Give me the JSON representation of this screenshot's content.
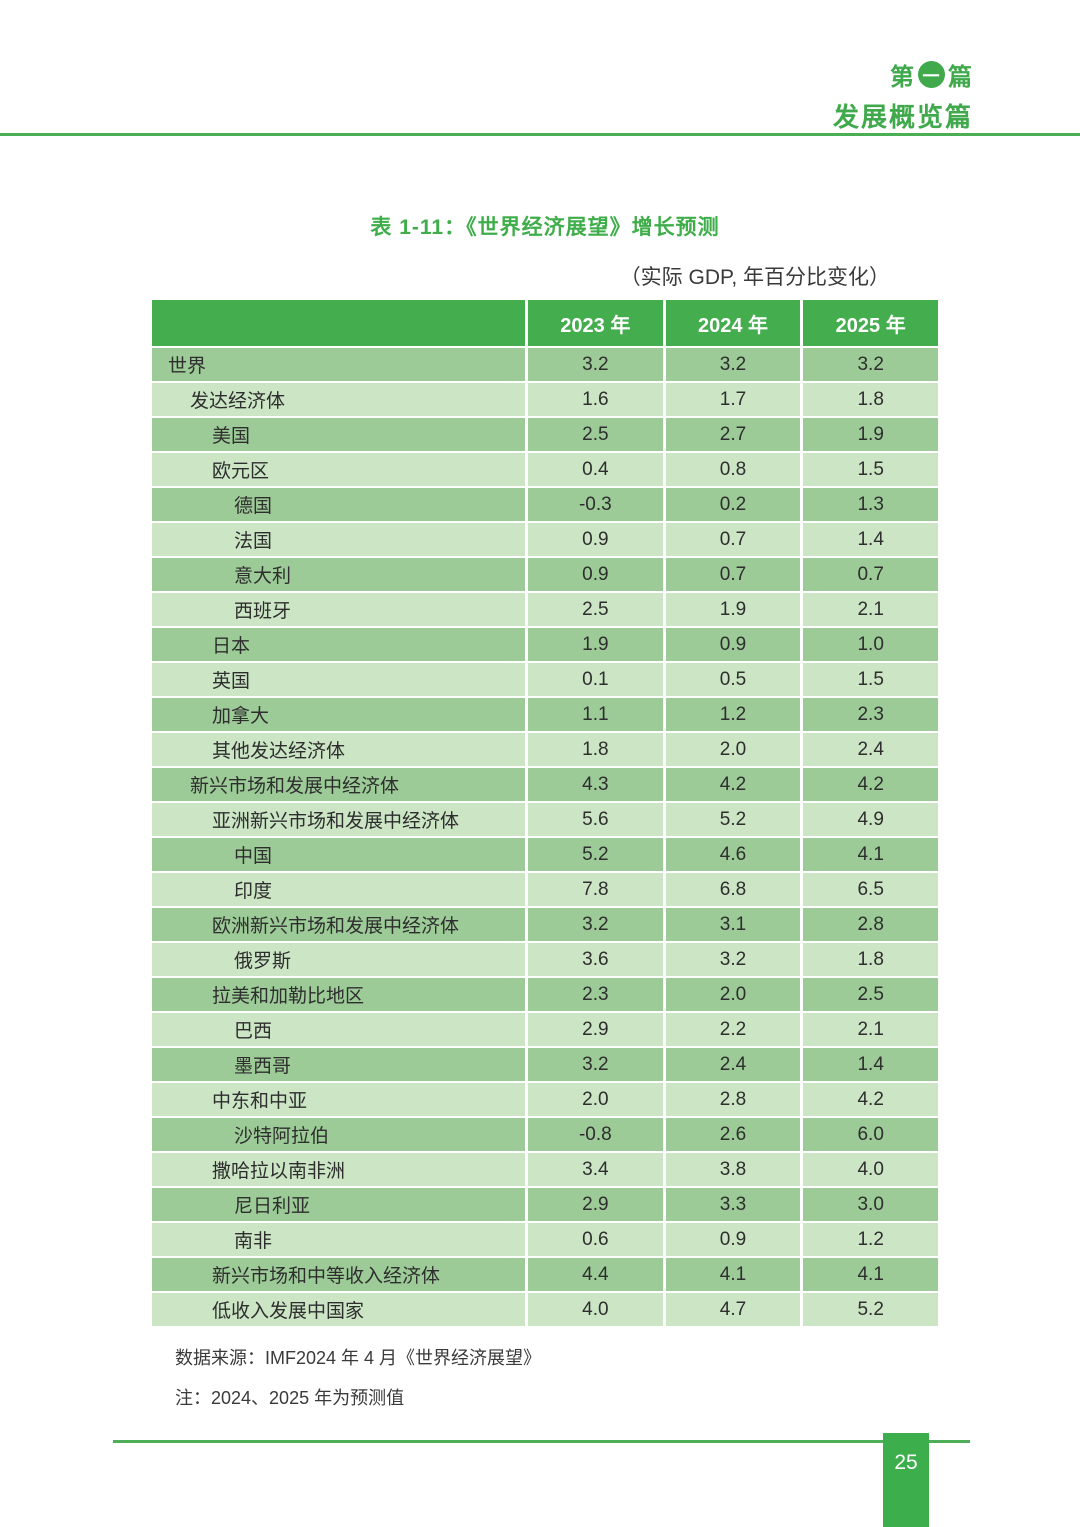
{
  "header": {
    "part_prefix": "第",
    "part_circle": "一",
    "part_suffix": "篇",
    "section_title": "发展概览篇"
  },
  "chart_data": {
    "type": "table",
    "title": "表 1-11：《世界经济展望》增长预测",
    "subtitle": "（实际 GDP, 年百分比变化）",
    "columns": [
      "2023 年",
      "2024 年",
      "2025 年"
    ],
    "rows": [
      {
        "label": "世界",
        "indent": 0,
        "values": [
          "3.2",
          "3.2",
          "3.2"
        ]
      },
      {
        "label": "发达经济体",
        "indent": 1,
        "values": [
          "1.6",
          "1.7",
          "1.8"
        ]
      },
      {
        "label": "美国",
        "indent": 2,
        "values": [
          "2.5",
          "2.7",
          "1.9"
        ]
      },
      {
        "label": "欧元区",
        "indent": 2,
        "values": [
          "0.4",
          "0.8",
          "1.5"
        ]
      },
      {
        "label": "德国",
        "indent": 3,
        "values": [
          "-0.3",
          "0.2",
          "1.3"
        ]
      },
      {
        "label": "法国",
        "indent": 3,
        "values": [
          "0.9",
          "0.7",
          "1.4"
        ]
      },
      {
        "label": "意大利",
        "indent": 3,
        "values": [
          "0.9",
          "0.7",
          "0.7"
        ]
      },
      {
        "label": "西班牙",
        "indent": 3,
        "values": [
          "2.5",
          "1.9",
          "2.1"
        ]
      },
      {
        "label": "日本",
        "indent": 2,
        "values": [
          "1.9",
          "0.9",
          "1.0"
        ]
      },
      {
        "label": "英国",
        "indent": 2,
        "values": [
          "0.1",
          "0.5",
          "1.5"
        ]
      },
      {
        "label": "加拿大",
        "indent": 2,
        "values": [
          "1.1",
          "1.2",
          "2.3"
        ]
      },
      {
        "label": "其他发达经济体",
        "indent": 2,
        "values": [
          "1.8",
          "2.0",
          "2.4"
        ]
      },
      {
        "label": "新兴市场和发展中经济体",
        "indent": 1,
        "values": [
          "4.3",
          "4.2",
          "4.2"
        ]
      },
      {
        "label": "亚洲新兴市场和发展中经济体",
        "indent": 2,
        "values": [
          "5.6",
          "5.2",
          "4.9"
        ]
      },
      {
        "label": "中国",
        "indent": 3,
        "values": [
          "5.2",
          "4.6",
          "4.1"
        ]
      },
      {
        "label": "印度",
        "indent": 3,
        "values": [
          "7.8",
          "6.8",
          "6.5"
        ]
      },
      {
        "label": "欧洲新兴市场和发展中经济体",
        "indent": 2,
        "values": [
          "3.2",
          "3.1",
          "2.8"
        ]
      },
      {
        "label": "俄罗斯",
        "indent": 3,
        "values": [
          "3.6",
          "3.2",
          "1.8"
        ]
      },
      {
        "label": "拉美和加勒比地区",
        "indent": 2,
        "values": [
          "2.3",
          "2.0",
          "2.5"
        ]
      },
      {
        "label": "巴西",
        "indent": 3,
        "values": [
          "2.9",
          "2.2",
          "2.1"
        ]
      },
      {
        "label": "墨西哥",
        "indent": 3,
        "values": [
          "3.2",
          "2.4",
          "1.4"
        ]
      },
      {
        "label": "中东和中亚",
        "indent": 2,
        "values": [
          "2.0",
          "2.8",
          "4.2"
        ]
      },
      {
        "label": "沙特阿拉伯",
        "indent": 3,
        "values": [
          "-0.8",
          "2.6",
          "6.0"
        ]
      },
      {
        "label": "撒哈拉以南非洲",
        "indent": 2,
        "values": [
          "3.4",
          "3.8",
          "4.0"
        ]
      },
      {
        "label": "尼日利亚",
        "indent": 3,
        "values": [
          "2.9",
          "3.3",
          "3.0"
        ]
      },
      {
        "label": "南非",
        "indent": 3,
        "values": [
          "0.6",
          "0.9",
          "1.2"
        ]
      },
      {
        "label": "新兴市场和中等收入经济体",
        "indent": 2,
        "values": [
          "4.4",
          "4.1",
          "4.1"
        ]
      },
      {
        "label": "低收入发展中国家",
        "indent": 2,
        "values": [
          "4.0",
          "4.7",
          "5.2"
        ]
      }
    ]
  },
  "footnotes": {
    "source": "数据来源：IMF2024 年 4 月《世界经济展望》",
    "note": "注：2024、2025 年为预测值"
  },
  "page_number": "25",
  "colors": {
    "accent_green": "#44ad4e",
    "row_green_medium": "#9ccb97",
    "row_green_light": "#cbe5c5",
    "header_text": "#ffffff",
    "body_text": "#2e2e2e"
  }
}
